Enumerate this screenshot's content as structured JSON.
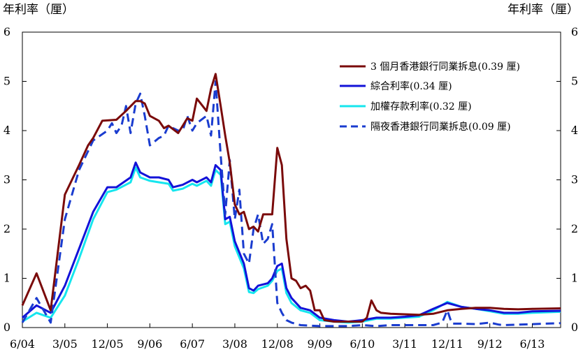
{
  "chart_data": {
    "type": "line",
    "y_label_left": "年利率（厘）",
    "y_label_right": "年利率（厘）",
    "ylim": [
      0,
      6
    ],
    "y_ticks": [
      0,
      1,
      2,
      3,
      4,
      5,
      6
    ],
    "x_axis": {
      "start": 2004.42,
      "end": 2013.92,
      "ticks": [
        {
          "label": "6/04",
          "t": 2004.42
        },
        {
          "label": "3/05",
          "t": 2005.17
        },
        {
          "label": "12/05",
          "t": 2005.92
        },
        {
          "label": "9/06",
          "t": 2006.67
        },
        {
          "label": "6/07",
          "t": 2007.42
        },
        {
          "label": "3/08",
          "t": 2008.17
        },
        {
          "label": "12/08",
          "t": 2008.92
        },
        {
          "label": "9/09",
          "t": 2009.67
        },
        {
          "label": "6/10",
          "t": 2010.42
        },
        {
          "label": "3/11",
          "t": 2011.17
        },
        {
          "label": "12/11",
          "t": 2011.92
        },
        {
          "label": "9/12",
          "t": 2012.67
        },
        {
          "label": "6/13",
          "t": 2013.42
        }
      ]
    },
    "series": [
      {
        "name": "3 個月香港銀行同業拆息(0.39 厘)",
        "color": "#7a0a0a",
        "dash": "solid",
        "points": [
          [
            2004.42,
            0.45
          ],
          [
            2004.67,
            1.1
          ],
          [
            2004.92,
            0.35
          ],
          [
            2005.17,
            2.7
          ],
          [
            2005.42,
            3.3
          ],
          [
            2005.58,
            3.7
          ],
          [
            2005.67,
            3.85
          ],
          [
            2005.83,
            4.2
          ],
          [
            2006.08,
            4.22
          ],
          [
            2006.25,
            4.4
          ],
          [
            2006.42,
            4.6
          ],
          [
            2006.5,
            4.6
          ],
          [
            2006.58,
            4.55
          ],
          [
            2006.67,
            4.3
          ],
          [
            2006.83,
            4.2
          ],
          [
            2006.92,
            4.05
          ],
          [
            2007.0,
            4.1
          ],
          [
            2007.17,
            3.95
          ],
          [
            2007.25,
            4.1
          ],
          [
            2007.33,
            4.25
          ],
          [
            2007.42,
            4.2
          ],
          [
            2007.5,
            4.65
          ],
          [
            2007.67,
            4.4
          ],
          [
            2007.75,
            4.85
          ],
          [
            2007.83,
            5.15
          ],
          [
            2007.92,
            4.5
          ],
          [
            2008.0,
            3.9
          ],
          [
            2008.08,
            3.35
          ],
          [
            2008.17,
            2.5
          ],
          [
            2008.25,
            2.3
          ],
          [
            2008.33,
            2.35
          ],
          [
            2008.42,
            2.0
          ],
          [
            2008.5,
            2.05
          ],
          [
            2008.58,
            1.95
          ],
          [
            2008.67,
            2.3
          ],
          [
            2008.75,
            2.3
          ],
          [
            2008.83,
            2.3
          ],
          [
            2008.92,
            3.65
          ],
          [
            2009.0,
            3.3
          ],
          [
            2009.08,
            1.8
          ],
          [
            2009.17,
            1.0
          ],
          [
            2009.25,
            0.95
          ],
          [
            2009.33,
            0.8
          ],
          [
            2009.42,
            0.85
          ],
          [
            2009.5,
            0.75
          ],
          [
            2009.58,
            0.35
          ],
          [
            2009.67,
            0.35
          ],
          [
            2009.75,
            0.15
          ],
          [
            2009.92,
            0.12
          ],
          [
            2010.17,
            0.12
          ],
          [
            2010.42,
            0.12
          ],
          [
            2010.5,
            0.2
          ],
          [
            2010.58,
            0.55
          ],
          [
            2010.67,
            0.35
          ],
          [
            2010.75,
            0.3
          ],
          [
            2010.92,
            0.28
          ],
          [
            2011.17,
            0.27
          ],
          [
            2011.42,
            0.26
          ],
          [
            2011.67,
            0.28
          ],
          [
            2011.92,
            0.35
          ],
          [
            2012.17,
            0.38
          ],
          [
            2012.42,
            0.4
          ],
          [
            2012.67,
            0.4
          ],
          [
            2012.92,
            0.38
          ],
          [
            2013.17,
            0.37
          ],
          [
            2013.42,
            0.38
          ],
          [
            2013.92,
            0.39
          ]
        ]
      },
      {
        "name": "綜合利率(0.34 厘)",
        "color": "#1212d8",
        "dash": "solid",
        "points": [
          [
            2004.42,
            0.2
          ],
          [
            2004.67,
            0.45
          ],
          [
            2004.92,
            0.3
          ],
          [
            2005.17,
            0.85
          ],
          [
            2005.42,
            1.6
          ],
          [
            2005.67,
            2.35
          ],
          [
            2005.92,
            2.85
          ],
          [
            2006.08,
            2.85
          ],
          [
            2006.33,
            3.05
          ],
          [
            2006.42,
            3.35
          ],
          [
            2006.5,
            3.15
          ],
          [
            2006.67,
            3.05
          ],
          [
            2006.83,
            3.05
          ],
          [
            2007.0,
            3.0
          ],
          [
            2007.08,
            2.85
          ],
          [
            2007.25,
            2.9
          ],
          [
            2007.42,
            3.0
          ],
          [
            2007.5,
            2.95
          ],
          [
            2007.67,
            3.05
          ],
          [
            2007.75,
            2.95
          ],
          [
            2007.83,
            3.3
          ],
          [
            2007.92,
            3.2
          ],
          [
            2008.0,
            2.2
          ],
          [
            2008.08,
            2.25
          ],
          [
            2008.17,
            1.75
          ],
          [
            2008.33,
            1.3
          ],
          [
            2008.42,
            0.8
          ],
          [
            2008.5,
            0.75
          ],
          [
            2008.58,
            0.85
          ],
          [
            2008.75,
            0.9
          ],
          [
            2008.83,
            1.0
          ],
          [
            2008.92,
            1.25
          ],
          [
            2009.0,
            1.3
          ],
          [
            2009.08,
            0.8
          ],
          [
            2009.17,
            0.6
          ],
          [
            2009.33,
            0.4
          ],
          [
            2009.5,
            0.35
          ],
          [
            2009.67,
            0.2
          ],
          [
            2009.92,
            0.15
          ],
          [
            2010.17,
            0.12
          ],
          [
            2010.42,
            0.15
          ],
          [
            2010.67,
            0.2
          ],
          [
            2010.92,
            0.2
          ],
          [
            2011.17,
            0.22
          ],
          [
            2011.42,
            0.25
          ],
          [
            2011.67,
            0.38
          ],
          [
            2011.92,
            0.5
          ],
          [
            2012.17,
            0.42
          ],
          [
            2012.42,
            0.38
          ],
          [
            2012.67,
            0.35
          ],
          [
            2012.92,
            0.3
          ],
          [
            2013.17,
            0.3
          ],
          [
            2013.42,
            0.33
          ],
          [
            2013.92,
            0.34
          ]
        ]
      },
      {
        "name": "加權存款利率(0.32 厘)",
        "color": "#16e6ee",
        "dash": "solid",
        "points": [
          [
            2004.42,
            0.12
          ],
          [
            2004.67,
            0.3
          ],
          [
            2004.92,
            0.2
          ],
          [
            2005.17,
            0.65
          ],
          [
            2005.42,
            1.4
          ],
          [
            2005.67,
            2.2
          ],
          [
            2005.92,
            2.75
          ],
          [
            2006.08,
            2.8
          ],
          [
            2006.33,
            2.95
          ],
          [
            2006.42,
            3.25
          ],
          [
            2006.5,
            3.05
          ],
          [
            2006.67,
            2.98
          ],
          [
            2006.83,
            2.95
          ],
          [
            2007.0,
            2.92
          ],
          [
            2007.08,
            2.78
          ],
          [
            2007.25,
            2.82
          ],
          [
            2007.42,
            2.92
          ],
          [
            2007.5,
            2.88
          ],
          [
            2007.67,
            2.98
          ],
          [
            2007.75,
            2.88
          ],
          [
            2007.83,
            3.2
          ],
          [
            2007.92,
            3.1
          ],
          [
            2008.0,
            2.1
          ],
          [
            2008.08,
            2.15
          ],
          [
            2008.17,
            1.65
          ],
          [
            2008.33,
            1.2
          ],
          [
            2008.42,
            0.72
          ],
          [
            2008.5,
            0.7
          ],
          [
            2008.58,
            0.78
          ],
          [
            2008.75,
            0.85
          ],
          [
            2008.83,
            0.95
          ],
          [
            2008.92,
            1.15
          ],
          [
            2009.0,
            1.2
          ],
          [
            2009.08,
            0.7
          ],
          [
            2009.17,
            0.5
          ],
          [
            2009.33,
            0.35
          ],
          [
            2009.5,
            0.3
          ],
          [
            2009.67,
            0.15
          ],
          [
            2009.92,
            0.12
          ],
          [
            2010.17,
            0.1
          ],
          [
            2010.42,
            0.12
          ],
          [
            2010.67,
            0.18
          ],
          [
            2010.92,
            0.18
          ],
          [
            2011.17,
            0.2
          ],
          [
            2011.42,
            0.22
          ],
          [
            2011.67,
            0.35
          ],
          [
            2011.92,
            0.52
          ],
          [
            2012.17,
            0.42
          ],
          [
            2012.42,
            0.38
          ],
          [
            2012.67,
            0.33
          ],
          [
            2012.92,
            0.28
          ],
          [
            2013.17,
            0.28
          ],
          [
            2013.42,
            0.3
          ],
          [
            2013.92,
            0.32
          ]
        ]
      },
      {
        "name": "隔夜香港銀行同業拆息(0.09 厘)",
        "color": "#1a3ccf",
        "dash": "dashed",
        "points": [
          [
            2004.42,
            0.1
          ],
          [
            2004.67,
            0.6
          ],
          [
            2004.92,
            0.1
          ],
          [
            2005.17,
            2.2
          ],
          [
            2005.42,
            3.2
          ],
          [
            2005.67,
            3.8
          ],
          [
            2005.92,
            4.0
          ],
          [
            2006.0,
            4.15
          ],
          [
            2006.08,
            3.95
          ],
          [
            2006.17,
            4.1
          ],
          [
            2006.25,
            4.5
          ],
          [
            2006.33,
            3.95
          ],
          [
            2006.42,
            4.55
          ],
          [
            2006.5,
            4.75
          ],
          [
            2006.58,
            4.3
          ],
          [
            2006.67,
            3.7
          ],
          [
            2006.83,
            3.85
          ],
          [
            2006.92,
            3.9
          ],
          [
            2007.0,
            4.1
          ],
          [
            2007.08,
            4.05
          ],
          [
            2007.17,
            4.0
          ],
          [
            2007.25,
            4.0
          ],
          [
            2007.33,
            4.3
          ],
          [
            2007.42,
            4.0
          ],
          [
            2007.5,
            4.15
          ],
          [
            2007.67,
            4.3
          ],
          [
            2007.75,
            3.9
          ],
          [
            2007.83,
            5.0
          ],
          [
            2007.92,
            3.5
          ],
          [
            2008.0,
            2.3
          ],
          [
            2008.08,
            3.4
          ],
          [
            2008.17,
            2.2
          ],
          [
            2008.25,
            2.8
          ],
          [
            2008.33,
            1.5
          ],
          [
            2008.42,
            1.3
          ],
          [
            2008.5,
            2.0
          ],
          [
            2008.58,
            2.3
          ],
          [
            2008.67,
            1.7
          ],
          [
            2008.75,
            1.8
          ],
          [
            2008.83,
            2.1
          ],
          [
            2008.92,
            0.5
          ],
          [
            2009.0,
            0.3
          ],
          [
            2009.08,
            0.15
          ],
          [
            2009.17,
            0.1
          ],
          [
            2009.33,
            0.05
          ],
          [
            2009.67,
            0.03
          ],
          [
            2009.92,
            0.03
          ],
          [
            2010.17,
            0.03
          ],
          [
            2010.42,
            0.05
          ],
          [
            2010.67,
            0.03
          ],
          [
            2010.92,
            0.05
          ],
          [
            2011.17,
            0.05
          ],
          [
            2011.42,
            0.05
          ],
          [
            2011.67,
            0.05
          ],
          [
            2011.83,
            0.1
          ],
          [
            2011.92,
            0.35
          ],
          [
            2012.0,
            0.08
          ],
          [
            2012.17,
            0.08
          ],
          [
            2012.42,
            0.07
          ],
          [
            2012.67,
            0.1
          ],
          [
            2012.83,
            0.06
          ],
          [
            2012.92,
            0.05
          ],
          [
            2013.17,
            0.06
          ],
          [
            2013.42,
            0.07
          ],
          [
            2013.92,
            0.09
          ]
        ]
      }
    ]
  }
}
